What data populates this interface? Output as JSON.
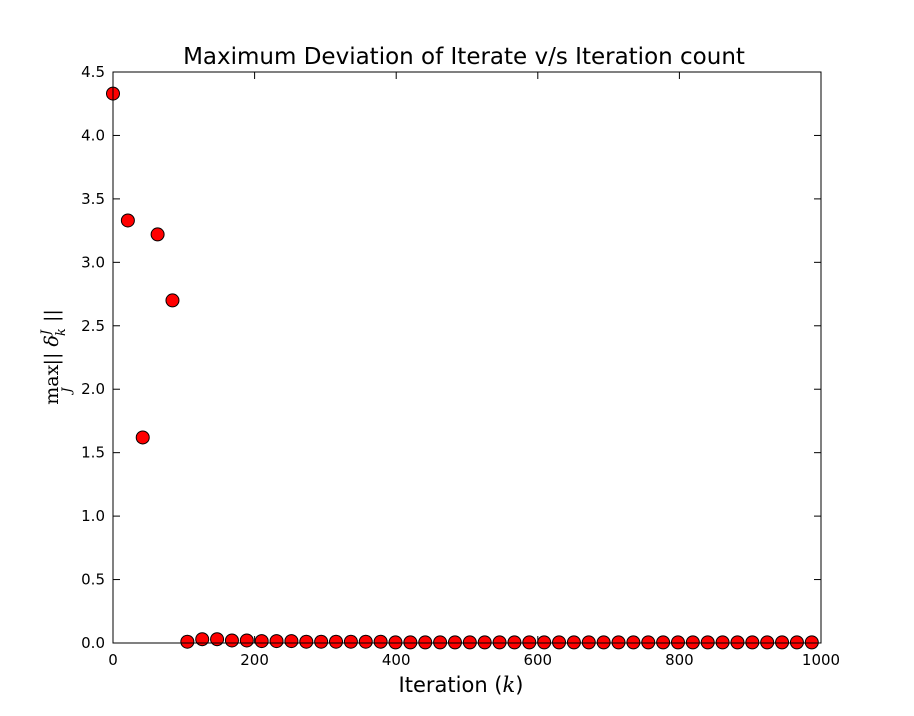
{
  "chart_data": {
    "type": "scatter",
    "title": "Maximum Deviation of Iterate v/s Iteration count",
    "xlabel": "Iteration (k)",
    "ylabel": "max_J || δ_k^J ||",
    "xlim": [
      0,
      1000
    ],
    "ylim": [
      0.0,
      4.5
    ],
    "xticks": [
      0,
      200,
      400,
      600,
      800,
      1000
    ],
    "xtick_labels": [
      "0",
      "200",
      "400",
      "600",
      "800",
      "1000"
    ],
    "yticks": [
      0.0,
      0.5,
      1.0,
      1.5,
      2.0,
      2.5,
      3.0,
      3.5,
      4.0,
      4.5
    ],
    "ytick_labels": [
      "0.0",
      "0.5",
      "1.0",
      "1.5",
      "2.0",
      "2.5",
      "3.0",
      "3.5",
      "4.0",
      "4.5"
    ],
    "grid": false,
    "marker_color": "#ff0000",
    "marker_edge_color": "#000000",
    "series": [
      {
        "x": [
          0,
          21,
          42,
          63,
          84,
          105,
          126,
          147,
          168,
          189,
          210,
          231,
          252,
          273,
          294,
          315,
          336,
          357,
          378,
          399,
          420,
          441,
          462,
          483,
          504,
          525,
          546,
          567,
          588,
          609,
          630,
          651,
          672,
          693,
          714,
          735,
          756,
          777,
          798,
          819,
          840,
          861,
          882,
          903,
          924,
          945,
          966,
          987
        ],
        "y": [
          4.33,
          3.33,
          1.62,
          3.22,
          2.7,
          0.01,
          0.03,
          0.03,
          0.02,
          0.02,
          0.015,
          0.015,
          0.015,
          0.01,
          0.01,
          0.01,
          0.01,
          0.01,
          0.01,
          0.005,
          0.005,
          0.005,
          0.005,
          0.005,
          0.005,
          0.005,
          0.005,
          0.005,
          0.005,
          0.005,
          0.005,
          0.005,
          0.005,
          0.005,
          0.005,
          0.005,
          0.005,
          0.005,
          0.005,
          0.005,
          0.005,
          0.005,
          0.005,
          0.005,
          0.005,
          0.005,
          0.005,
          0.005
        ]
      }
    ]
  }
}
